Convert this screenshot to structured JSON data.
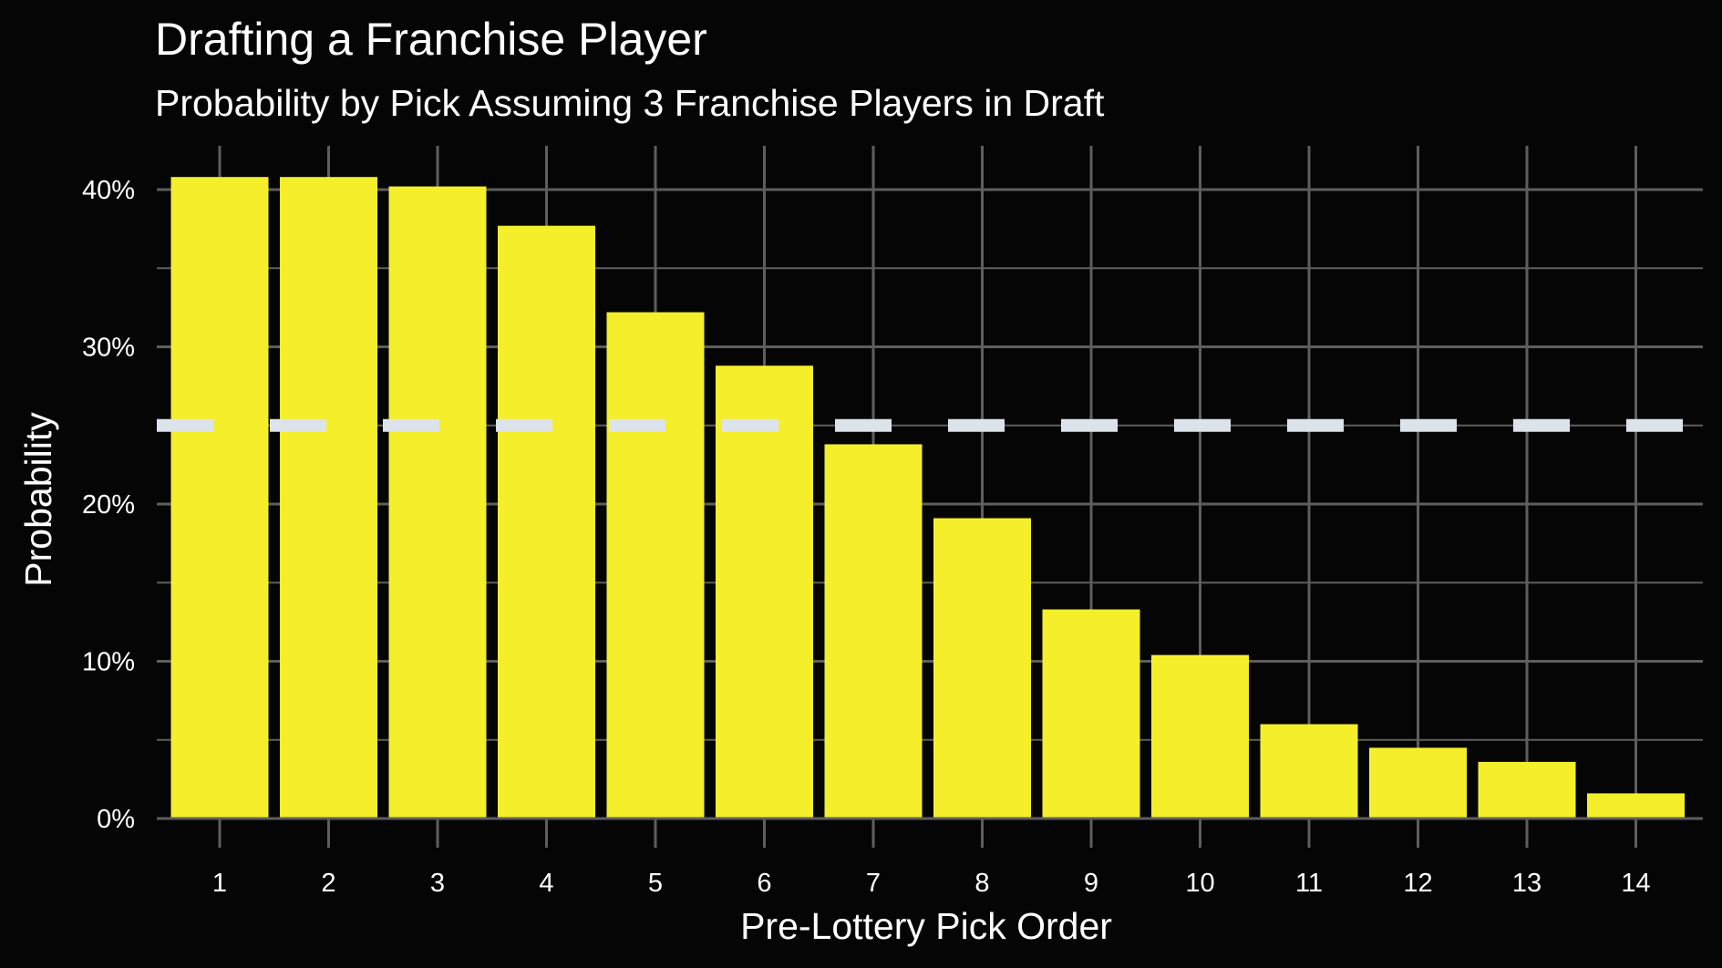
{
  "chart_data": {
    "type": "bar",
    "title": "Drafting a Franchise Player",
    "subtitle": "Probability by Pick Assuming 3 Franchise Players in Draft",
    "xlabel": "Pre-Lottery Pick Order",
    "ylabel": "Probability",
    "categories": [
      "1",
      "2",
      "3",
      "4",
      "5",
      "6",
      "7",
      "8",
      "9",
      "10",
      "11",
      "12",
      "13",
      "14"
    ],
    "values": [
      40.8,
      40.8,
      40.2,
      37.7,
      32.2,
      28.8,
      23.8,
      19.1,
      13.3,
      10.4,
      6.0,
      4.5,
      3.6,
      1.6
    ],
    "ylim": [
      0,
      42
    ],
    "yticks": [
      0,
      10,
      20,
      30,
      40
    ],
    "ytick_labels": [
      "0%",
      "10%",
      "20%",
      "30%",
      "40%"
    ],
    "reference_line": {
      "value": 25,
      "style": "dashed"
    },
    "grid": true,
    "colors": {
      "background": "#050505",
      "bar": "#f5ee2b",
      "grid": "#5e5e5e",
      "reference_line": "#dde3ea",
      "text": "#ffffff"
    }
  }
}
